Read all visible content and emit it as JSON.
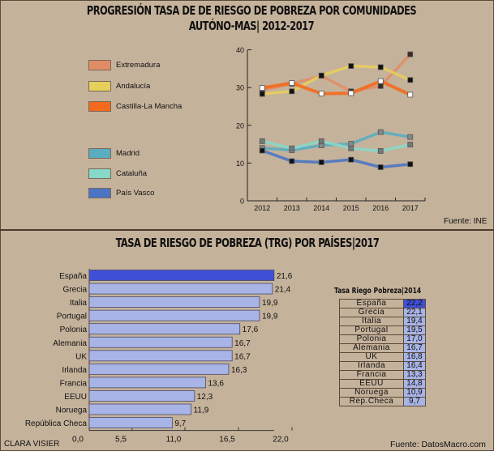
{
  "top_title": "PROGRESIÓN TASA DE DE RIESGO DE POBREZA POR COMUNIDADES AUTÓNO-MAS| 2012-2017",
  "top_source": "Fuente: INE",
  "bottom_title": "TASA DE RIESGO DE POBREZA  (TRG) POR PAÍSES|2017",
  "author": "CLARA VISIER",
  "bottom_source": "Fuente: DatosMacro.com",
  "colors": {
    "background": "#c5b29b",
    "extremadura": "#e08c66",
    "andalucia": "#e7cf5c",
    "clm": "#f36a1e",
    "madrid": "#5aacc0",
    "cataluna": "#86d8c9",
    "pais_vasco": "#4c74c4",
    "bar": "#a8b4e6",
    "bar_highlight": "#3f4fd6"
  },
  "chart_data": [
    {
      "type": "line",
      "title": "PROGRESIÓN TASA DE DE RIESGO DE POBREZA POR COMUNIDADES AUTÓNO-MAS| 2012-2017",
      "x": [
        "2012",
        "2013",
        "2014",
        "2015",
        "2016",
        "2017"
      ],
      "ylim": [
        0,
        40
      ],
      "yticks": [
        "0",
        "10",
        "20",
        "30",
        "40"
      ],
      "grid": false,
      "legend": "left",
      "series": [
        {
          "name": "Extremadura",
          "key": "extremadura",
          "values": [
            29.3,
            31.0,
            33.1,
            29.0,
            30.4,
            38.8
          ]
        },
        {
          "name": "Andalucía",
          "key": "andalucia",
          "values": [
            28.3,
            29.0,
            33.2,
            35.7,
            35.4,
            32.0
          ]
        },
        {
          "name": "Castilla-La Mancha",
          "key": "clm",
          "values": [
            29.9,
            31.2,
            28.4,
            28.5,
            31.7,
            28.1
          ]
        },
        {
          "name": "Madrid",
          "key": "madrid",
          "values": [
            14.0,
            13.4,
            14.7,
            15.1,
            18.2,
            16.9
          ]
        },
        {
          "name": "Cataluña",
          "key": "cataluna",
          "values": [
            15.8,
            13.9,
            15.8,
            13.9,
            13.2,
            14.9
          ]
        },
        {
          "name": "País Vasco",
          "key": "pais_vasco",
          "values": [
            13.3,
            10.5,
            10.2,
            10.9,
            8.9,
            9.7
          ]
        }
      ]
    },
    {
      "type": "bar",
      "orientation": "horizontal",
      "title": "TASA DE RIESGO DE POBREZA  (TRG) POR PAÍSES|2017",
      "categories": [
        "España",
        "Grecia",
        "Italia",
        "Portugal",
        "Polonia",
        "Alemania",
        "UK",
        "Irlanda",
        "Francia",
        "EEUU",
        "Noruega",
        "República Checa"
      ],
      "values": [
        21.6,
        21.4,
        19.9,
        19.9,
        17.6,
        16.7,
        16.7,
        16.3,
        13.6,
        12.3,
        11.9,
        9.7
      ],
      "labels": [
        "21,6",
        "21,4",
        "19,9",
        "19,9",
        "17,6",
        "16,7",
        "16,7",
        "16,3",
        "13,6",
        "12,3",
        "11,9",
        "9,7"
      ],
      "highlight": "España",
      "xlim": [
        0,
        22
      ],
      "xticks": [
        "0,0",
        "5,5",
        "11,0",
        "16,5",
        "22,0"
      ],
      "xtick_values": [
        0,
        5.5,
        11,
        16.5,
        22
      ]
    },
    {
      "type": "table",
      "title": "Tasa Riego Pobreza|2014",
      "rows": [
        {
          "country": "España",
          "value": "22,2"
        },
        {
          "country": "Grecia",
          "value": "22,1"
        },
        {
          "country": "Italia",
          "value": "19,4"
        },
        {
          "country": "Portugal",
          "value": "19,5"
        },
        {
          "country": "Polonia",
          "value": "17,0"
        },
        {
          "country": "Alemania",
          "value": "16,7"
        },
        {
          "country": "UK",
          "value": "16,8"
        },
        {
          "country": "Irlanda",
          "value": "16,4"
        },
        {
          "country": "Francia",
          "value": "13,3"
        },
        {
          "country": "EEUU",
          "value": "14,8"
        },
        {
          "country": "Noruega",
          "value": "10,9"
        },
        {
          "country": "Rep.Checa",
          "value": "9,7"
        }
      ]
    }
  ]
}
